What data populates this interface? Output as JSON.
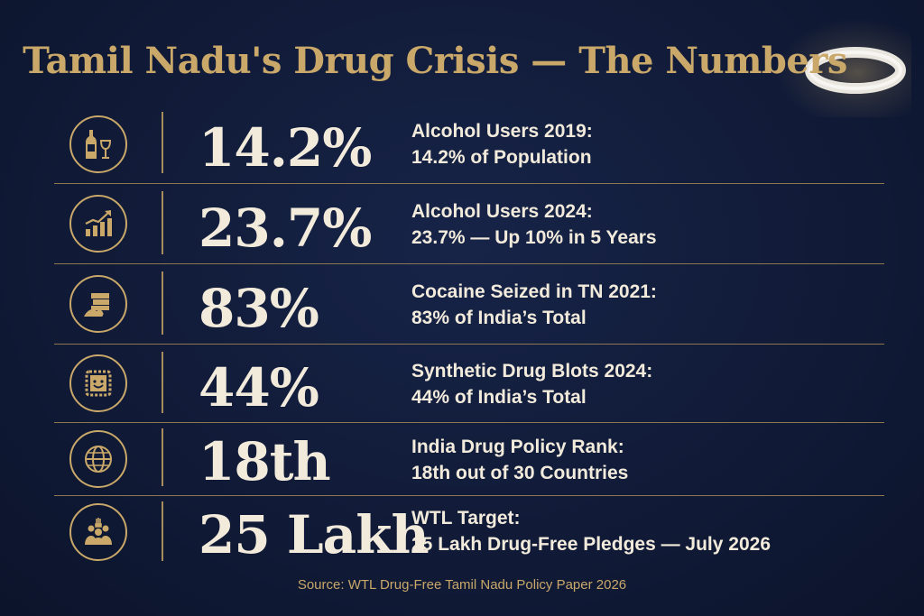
{
  "title": "Tamil Nadu's Drug Crisis — The Numbers",
  "rows": [
    {
      "icon": "alcohol-bottle-glass-icon",
      "value": "14.2%",
      "line1": "Alcohol Users 2019:",
      "line2": "14.2% of Population"
    },
    {
      "icon": "rising-bar-chart-icon",
      "value": "23.7%",
      "line1": "Alcohol Users 2024:",
      "line2": "23.7% — Up 10% in 5 Years"
    },
    {
      "icon": "cocaine-bricks-powder-icon",
      "value": "83%",
      "line1": "Cocaine Seized in TN 2021:",
      "line2": "83% of India’s Total"
    },
    {
      "icon": "blotter-smiley-icon",
      "value": "44%",
      "line1": "Synthetic Drug Blots 2024:",
      "line2": "44% of India’s Total"
    },
    {
      "icon": "globe-icon",
      "value": "18th",
      "line1": "India Drug Policy Rank:",
      "line2": "18th out of 30 Countries"
    },
    {
      "icon": "raised-hands-group-icon",
      "value": "25 Lakh",
      "line1": "WTL Target:",
      "line2": "25 Lakh Drug-Free Pledges — July 2026"
    }
  ],
  "source": "Source: WTL Drug-Free Tamil Nadu Policy Paper 2026",
  "colors": {
    "gold": "#c9a86a",
    "text": "#f2ebdc",
    "background": "#111b38"
  }
}
